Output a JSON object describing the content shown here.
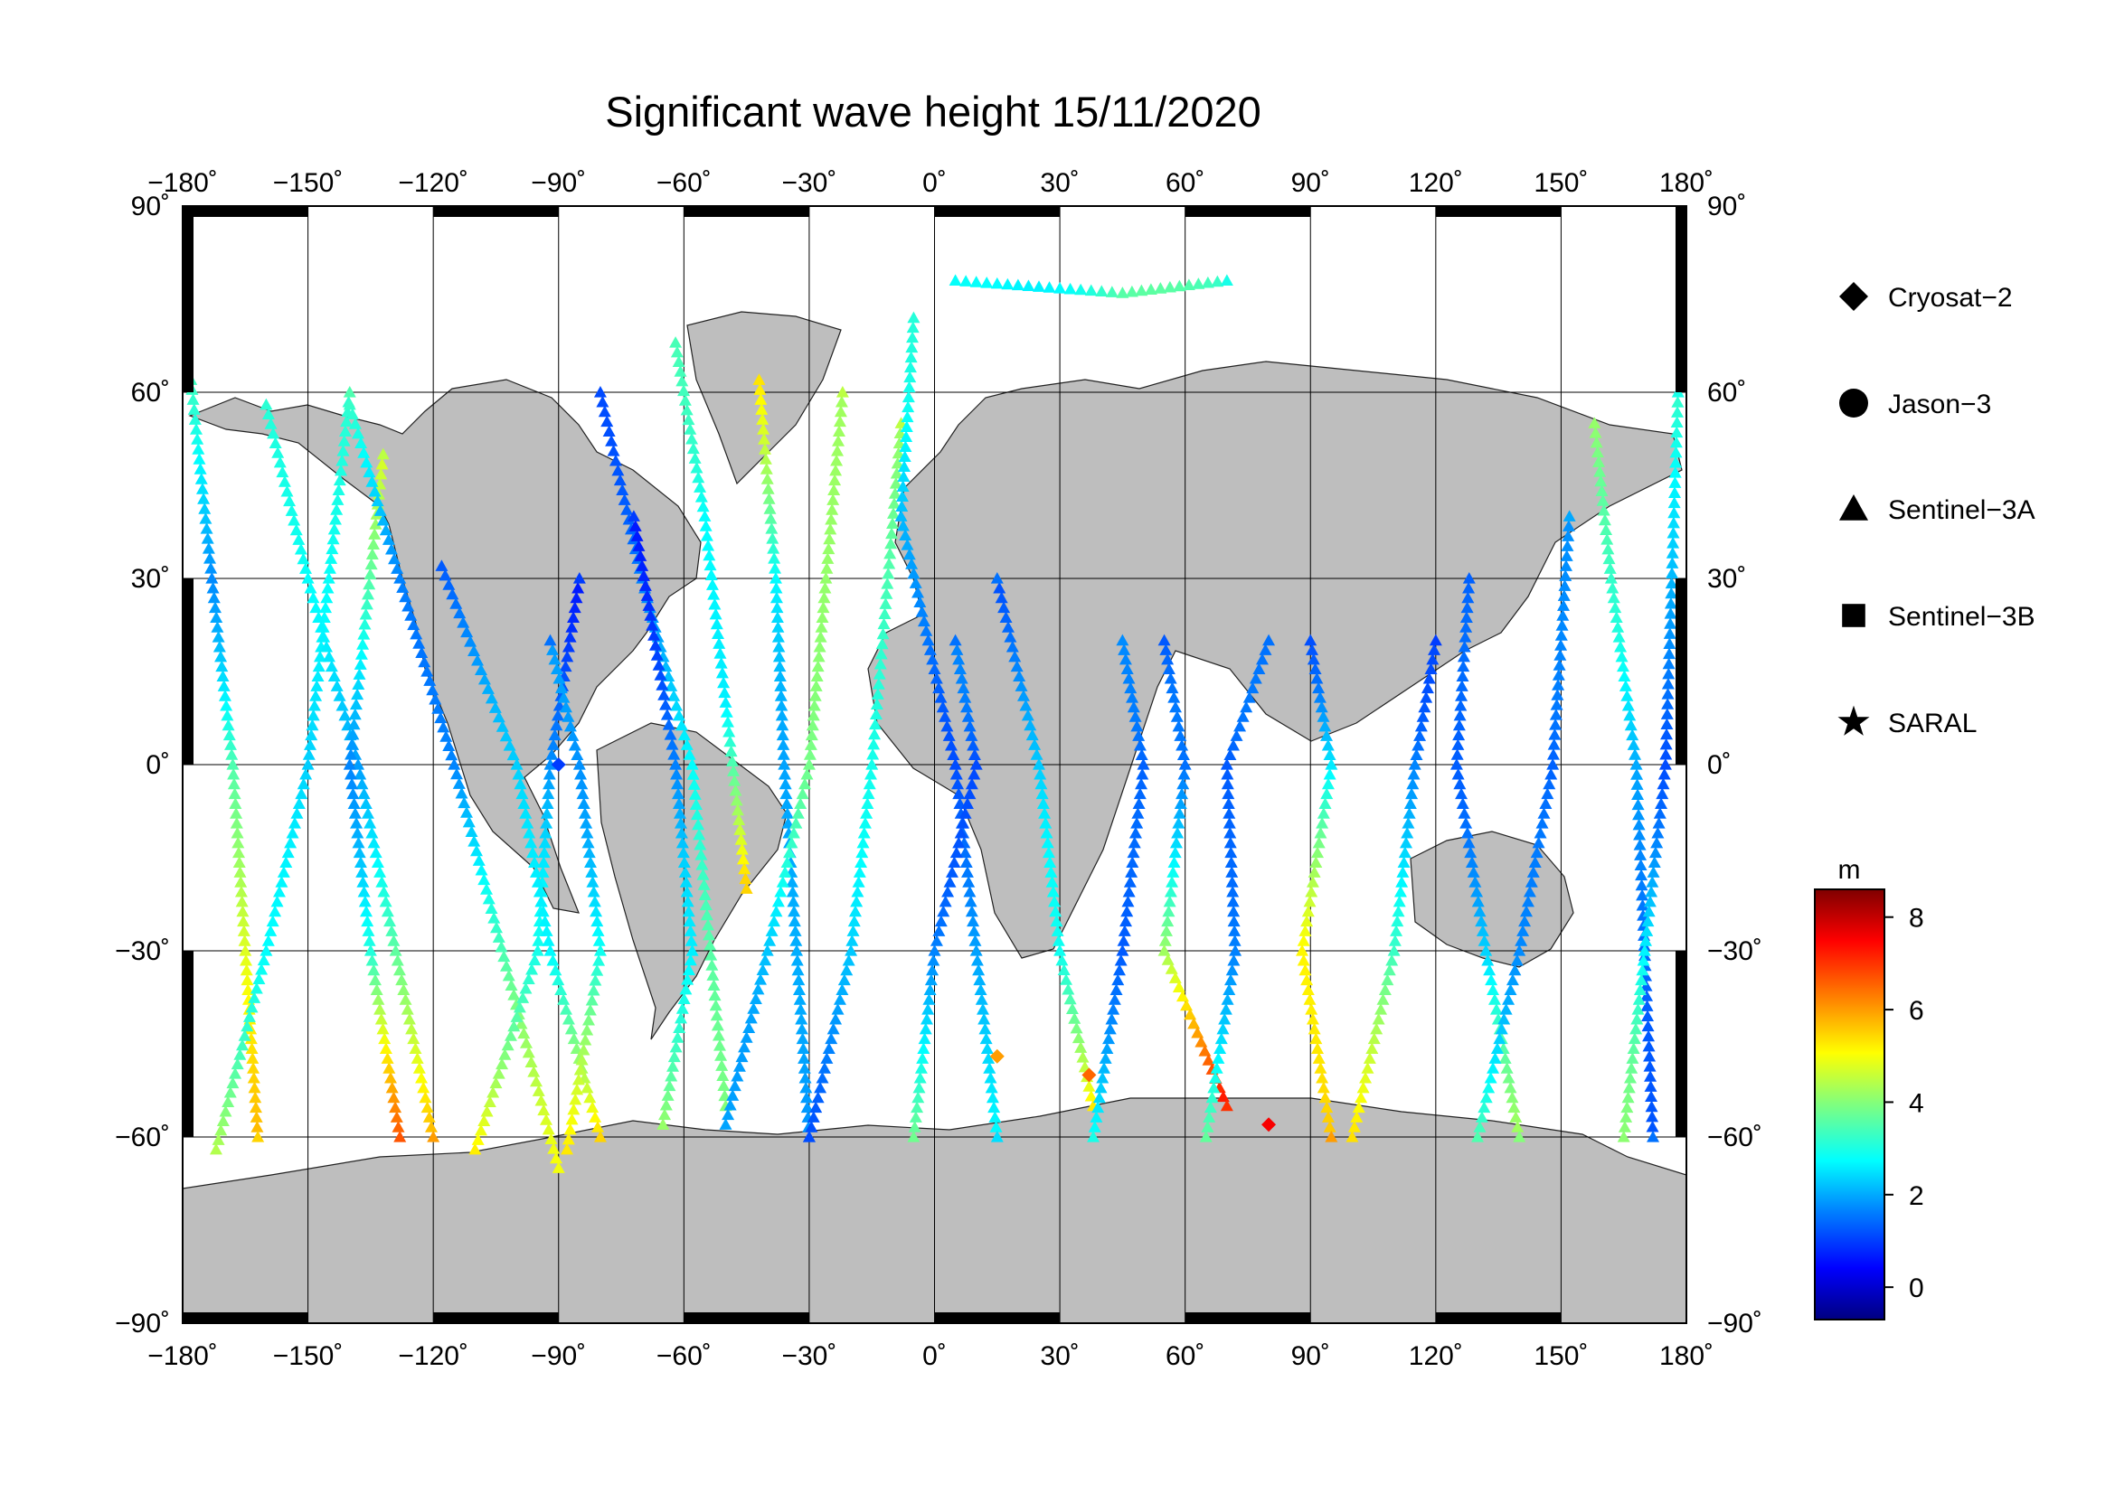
{
  "title": "Significant wave height 15/11/2020",
  "x_ticks": [
    {
      "value": -180,
      "label": "−180˚"
    },
    {
      "value": -150,
      "label": "−150˚"
    },
    {
      "value": -120,
      "label": "−120˚"
    },
    {
      "value": -90,
      "label": "−90˚"
    },
    {
      "value": -60,
      "label": "−60˚"
    },
    {
      "value": -30,
      "label": "−30˚"
    },
    {
      "value": 0,
      "label": "0˚"
    },
    {
      "value": 30,
      "label": "30˚"
    },
    {
      "value": 60,
      "label": "60˚"
    },
    {
      "value": 90,
      "label": "90˚"
    },
    {
      "value": 120,
      "label": "120˚"
    },
    {
      "value": 150,
      "label": "150˚"
    },
    {
      "value": 180,
      "label": "180˚"
    }
  ],
  "y_ticks": [
    {
      "value": 90,
      "label": "90˚"
    },
    {
      "value": 60,
      "label": "60˚"
    },
    {
      "value": 30,
      "label": "30˚"
    },
    {
      "value": 0,
      "label": "0˚"
    },
    {
      "value": -30,
      "label": "−30˚"
    },
    {
      "value": -60,
      "label": "−60˚"
    },
    {
      "value": -90,
      "label": "−90˚"
    }
  ],
  "legend": [
    {
      "name": "Cryosat−2",
      "marker": "diamond"
    },
    {
      "name": "Jason−3",
      "marker": "circle"
    },
    {
      "name": "Sentinel−3A",
      "marker": "triangle"
    },
    {
      "name": "Sentinel−3B",
      "marker": "square"
    },
    {
      "name": "SARAL",
      "marker": "star"
    }
  ],
  "colorbar": {
    "unit": "m",
    "range": [
      -0.7,
      8.6
    ],
    "ticks": [
      {
        "value": 0,
        "label": "0"
      },
      {
        "value": 2,
        "label": "2"
      },
      {
        "value": 4,
        "label": "4"
      },
      {
        "value": 6,
        "label": "6"
      },
      {
        "value": 8,
        "label": "8"
      }
    ],
    "colormap": "jet",
    "colors": [
      "#00007f",
      "#0000ff",
      "#007fff",
      "#00ffff",
      "#7fff7f",
      "#ffff00",
      "#ff7f00",
      "#ff0000",
      "#7f0000"
    ]
  },
  "map_style": {
    "land_color": "#bebebe",
    "ocean_color": "#ffffff",
    "grid_color": "#000000"
  },
  "chart_data": {
    "type": "scatter",
    "title": "Significant wave height 15/11/2020",
    "projection": "equirectangular",
    "xlim": [
      -180,
      180
    ],
    "ylim": [
      -90,
      90
    ],
    "grid": true,
    "xlabel": "",
    "ylabel": "",
    "colorbar_label": "m",
    "legend_position": "right",
    "tracks": [
      {
        "satellite": "Sentinel−3A",
        "hs": [
          3.0,
          2.0,
          3.5,
          5.5
        ],
        "lat": [
          62,
          30,
          0,
          -60
        ],
        "lon": [
          -178,
          -173,
          -168,
          -162
        ]
      },
      {
        "satellite": "Sentinel−3A",
        "hs": [
          4.5,
          3.0,
          2.0,
          3.5
        ],
        "lat": [
          -62,
          -30,
          0,
          60
        ],
        "lon": [
          -172,
          -160,
          -150,
          -140
        ]
      },
      {
        "satellite": "Sentinel−3A",
        "hs": [
          3.5,
          2.5,
          2.0,
          6.0
        ],
        "lat": [
          58,
          30,
          0,
          -60
        ],
        "lon": [
          -160,
          -150,
          -138,
          -120
        ]
      },
      {
        "satellite": "Sentinel−3A",
        "hs": [
          6.5,
          3.0,
          2.0,
          4.5
        ],
        "lat": [
          -60,
          -30,
          0,
          50
        ],
        "lon": [
          -128,
          -135,
          -140,
          -132
        ]
      },
      {
        "satellite": "Sentinel−3A",
        "hs": [
          3.0,
          2.0,
          1.5,
          5.0
        ],
        "lat": [
          58,
          30,
          0,
          -65
        ],
        "lon": [
          -140,
          -128,
          -115,
          -90
        ]
      },
      {
        "satellite": "Sentinel−3A",
        "hs": [
          5.5,
          3.0,
          1.5,
          1.0
        ],
        "lat": [
          -62,
          -30,
          0,
          30
        ],
        "lon": [
          -110,
          -95,
          -92,
          -85
        ]
      },
      {
        "satellite": "Sentinel−3A",
        "hs": [
          1.5,
          2.0,
          3.0,
          5.5
        ],
        "lat": [
          32,
          0,
          -30,
          -60
        ],
        "lon": [
          -118,
          -100,
          -92,
          -80
        ]
      },
      {
        "satellite": "Sentinel−3A",
        "hs": [
          5.0,
          3.0,
          2.0,
          1.5
        ],
        "lat": [
          -62,
          -30,
          0,
          20
        ],
        "lon": [
          -88,
          -80,
          -85,
          -92
        ]
      },
      {
        "satellite": "Sentinel−3A",
        "hs": [
          1.0,
          2.0,
          2.5,
          4.0
        ],
        "lat": [
          60,
          30,
          0,
          -55
        ],
        "lon": [
          -80,
          -70,
          -58,
          -50
        ]
      },
      {
        "satellite": "Sentinel−3A",
        "hs": [
          4.5,
          2.5,
          1.5,
          1.0
        ],
        "lat": [
          -58,
          -30,
          0,
          40
        ],
        "lon": [
          -65,
          -58,
          -62,
          -72
        ]
      },
      {
        "satellite": "Sentinel−3A",
        "hs": [
          3.5,
          2.5,
          3.0,
          5.5
        ],
        "lat": [
          68,
          40,
          10,
          -20
        ],
        "lon": [
          -62,
          -55,
          -50,
          -45
        ]
      },
      {
        "satellite": "Sentinel−3A",
        "hs": [
          5.0,
          3.0,
          2.0,
          1.5
        ],
        "lat": [
          62,
          30,
          0,
          -60
        ],
        "lon": [
          -42,
          -38,
          -36,
          -30
        ]
      },
      {
        "satellite": "Sentinel−3A",
        "hs": [
          2.0,
          2.5,
          3.5,
          4.5
        ],
        "lat": [
          -58,
          -30,
          0,
          60
        ],
        "lon": [
          -50,
          -40,
          -30,
          -22
        ]
      },
      {
        "satellite": "Sentinel−3A",
        "hs": [
          1.5,
          2.0,
          3.0,
          4.5
        ],
        "lat": [
          -60,
          -30,
          0,
          55
        ],
        "lon": [
          -30,
          -20,
          -15,
          -8
        ]
      },
      {
        "satellite": "Sentinel−3A",
        "hs": [
          3.0,
          2.0,
          1.5,
          2.5
        ],
        "lat": [
          72,
          40,
          0,
          -60
        ],
        "lon": [
          -5,
          -8,
          5,
          15
        ]
      },
      {
        "satellite": "Sentinel−3A",
        "hs": [
          3.5,
          2.0,
          1.0,
          1.5
        ],
        "lat": [
          -60,
          -30,
          0,
          20
        ],
        "lon": [
          -5,
          0,
          10,
          5
        ]
      },
      {
        "satellite": "Sentinel−3A",
        "hs": [
          5.5,
          3.0,
          2.0,
          1.5
        ],
        "lat": [
          -55,
          -30,
          0,
          30
        ],
        "lon": [
          38,
          30,
          25,
          15
        ]
      },
      {
        "satellite": "Sentinel−3A",
        "hs": [
          2.0,
          1.0,
          1.5,
          3.0
        ],
        "lat": [
          20,
          0,
          -30,
          -60
        ],
        "lon": [
          45,
          50,
          45,
          38
        ]
      },
      {
        "satellite": "Sentinel−3A",
        "hs": [
          1.0,
          1.5,
          4.5,
          7.0
        ],
        "lat": [
          20,
          0,
          -30,
          -55
        ],
        "lon": [
          55,
          60,
          55,
          70
        ]
      },
      {
        "satellite": "Sentinel−3A",
        "hs": [
          3.5,
          2.0,
          1.0,
          1.5
        ],
        "lat": [
          -60,
          -30,
          0,
          20
        ],
        "lon": [
          65,
          72,
          70,
          80
        ]
      },
      {
        "satellite": "Sentinel−3A",
        "hs": [
          1.5,
          2.5,
          5.0,
          6.0
        ],
        "lat": [
          20,
          0,
          -30,
          -60
        ],
        "lon": [
          90,
          95,
          88,
          95
        ]
      },
      {
        "satellite": "Sentinel−3A",
        "hs": [
          5.5,
          3.0,
          2.0,
          1.0
        ],
        "lat": [
          -60,
          -30,
          0,
          20
        ],
        "lon": [
          100,
          110,
          115,
          120
        ]
      },
      {
        "satellite": "Sentinel−3A",
        "hs": [
          1.0,
          1.5,
          2.5,
          4.0
        ],
        "lat": [
          30,
          0,
          -30,
          -60
        ],
        "lon": [
          128,
          125,
          132,
          140
        ]
      },
      {
        "satellite": "Sentinel−3A",
        "hs": [
          3.5,
          2.0,
          1.0,
          2.0
        ],
        "lat": [
          -60,
          -30,
          0,
          40
        ],
        "lon": [
          130,
          140,
          148,
          152
        ]
      },
      {
        "satellite": "Sentinel−3A",
        "hs": [
          4.5,
          3.0,
          2.0,
          1.5
        ],
        "lat": [
          55,
          30,
          0,
          -60
        ],
        "lon": [
          158,
          162,
          168,
          172
        ]
      },
      {
        "satellite": "Sentinel−3A",
        "hs": [
          4.0,
          2.5,
          1.5,
          3.0
        ],
        "lat": [
          -60,
          -30,
          0,
          60
        ],
        "lon": [
          165,
          170,
          175,
          178
        ]
      },
      {
        "satellite": "Sentinel−3A",
        "hs": [
          2.5,
          3.0,
          3.5,
          3.0
        ],
        "lat": [
          78,
          77,
          76,
          78
        ],
        "lon": [
          5,
          25,
          45,
          70
        ]
      }
    ],
    "point_series": [
      {
        "satellite": "Cryosat−2",
        "hs": [
          1.0,
          6.0,
          6.5,
          7.5
        ],
        "lat": [
          0,
          -47,
          -50,
          -58
        ],
        "lon": [
          -90,
          15,
          37,
          80
        ]
      }
    ]
  }
}
